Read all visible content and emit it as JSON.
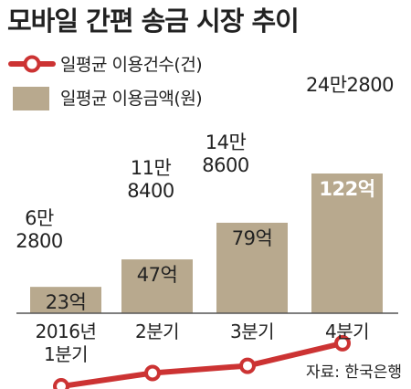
{
  "chart_data": {
    "type": "bar",
    "title": "모바일 간편 송금 시장 추이",
    "categories": [
      "2016년\n1분기",
      "2분기",
      "3분기",
      "4분기"
    ],
    "series": [
      {
        "name": "일평균 이용금액(원)",
        "type": "bar",
        "values": [
          23,
          47,
          79,
          122
        ],
        "labels": [
          "23억",
          "47억",
          "79억",
          "122억"
        ],
        "color": "#b8a98e"
      },
      {
        "name": "일평균 이용건수(건)",
        "type": "line",
        "values": [
          62800,
          118400,
          148600,
          242800
        ],
        "labels": [
          [
            "6만",
            "2800"
          ],
          [
            "11만",
            "8400"
          ],
          [
            "14만",
            "8600"
          ],
          [
            "24만2800"
          ]
        ],
        "color": "#cc3333"
      }
    ],
    "legend_position": "top-left",
    "grid": false
  },
  "source": "자료: 한국은행"
}
